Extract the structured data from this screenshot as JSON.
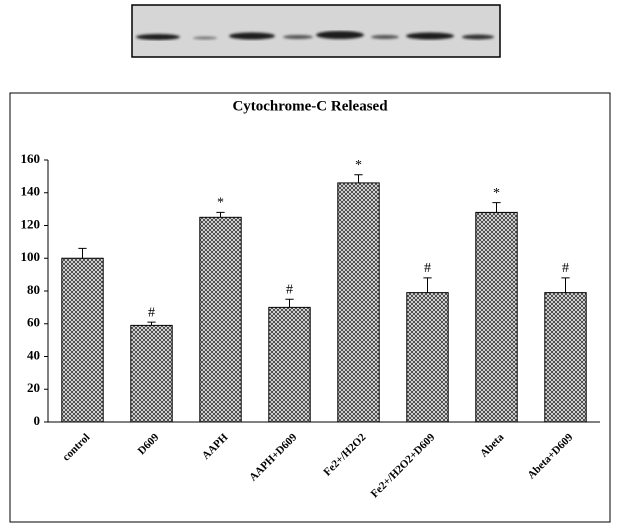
{
  "chart_data": {
    "type": "bar",
    "title": "Cytochrome-C Released",
    "categories": [
      "control",
      "D609",
      "AAPH",
      "AAPH+D609",
      "Fe2+/H2O2",
      "Fe2+/H2O2+D609",
      "Abeta",
      "Abeta+D609"
    ],
    "values": [
      100,
      59,
      125,
      70,
      146,
      79,
      128,
      79
    ],
    "errors": [
      6,
      2,
      3,
      5,
      5,
      9,
      6,
      9
    ],
    "annotations": [
      null,
      "#",
      "*",
      "#",
      "*",
      "#",
      "*",
      "#"
    ],
    "color": "#444444",
    "ylim": [
      0,
      160
    ],
    "yticks": [
      0,
      20,
      40,
      60,
      80,
      100,
      120,
      140,
      160
    ]
  }
}
